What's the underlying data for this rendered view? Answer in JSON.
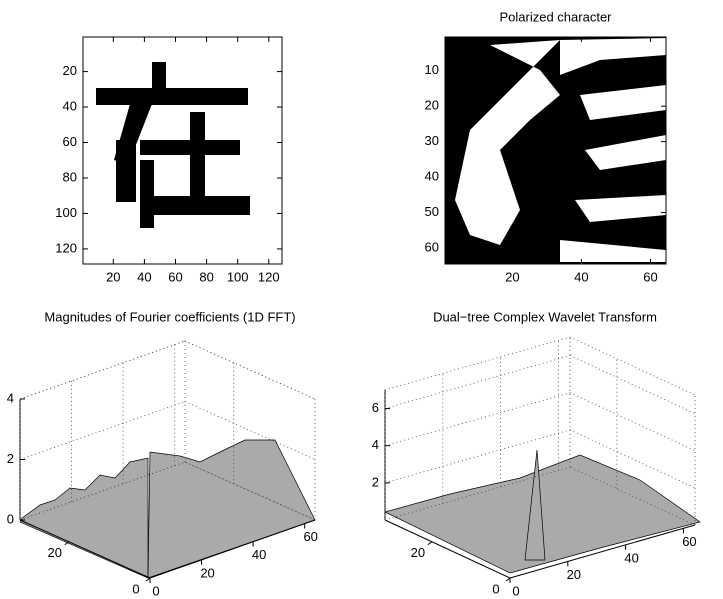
{
  "chart_data": [
    {
      "type": "image",
      "xlim": [
        0.5,
        128.5
      ],
      "ylim": [
        0.5,
        128.5
      ],
      "xticks": [
        20,
        40,
        60,
        80,
        100,
        120
      ],
      "yticks": [
        20,
        40,
        60,
        80,
        100,
        120
      ]
    },
    {
      "type": "image",
      "title": "Polarized character",
      "xlim": [
        0.5,
        64.5
      ],
      "ylim": [
        0.5,
        64.5
      ],
      "xticks": [
        20,
        40,
        60
      ],
      "yticks": [
        10,
        20,
        30,
        40,
        50,
        60
      ]
    },
    {
      "type": "surface",
      "title": "Magnitudes of Fourier coefficients (1D FFT)",
      "xlim": [
        0,
        64
      ],
      "ylim": [
        0,
        32
      ],
      "zlim": [
        0,
        4
      ],
      "xticks": [
        0,
        20,
        40,
        60
      ],
      "yticks": [
        0,
        20
      ],
      "zticks": [
        0,
        2,
        4
      ]
    },
    {
      "type": "surface",
      "title": "Dual−tree Complex Wavelet Transform",
      "xlim": [
        0,
        64
      ],
      "ylim": [
        0,
        32
      ],
      "zlim": [
        0,
        7
      ],
      "xticks": [
        0,
        20,
        40,
        60
      ],
      "yticks": [
        0,
        20
      ],
      "zticks": [
        2,
        4,
        6
      ]
    }
  ]
}
